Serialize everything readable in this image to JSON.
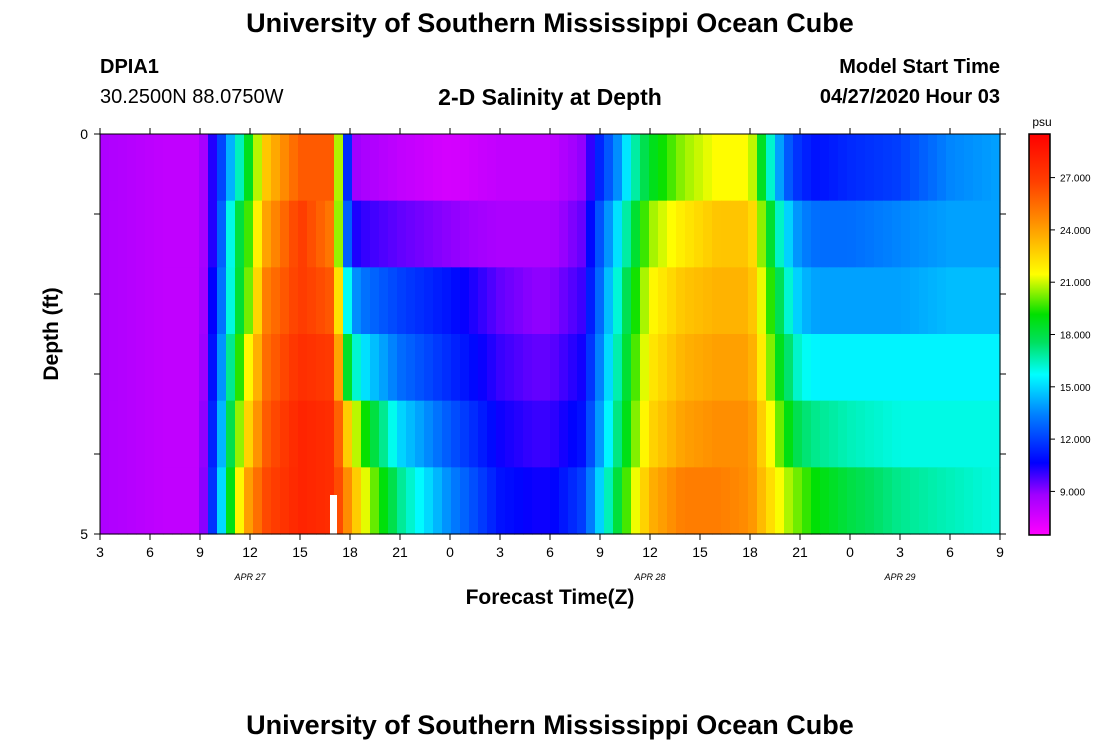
{
  "header": {
    "main_title": "University of Southern Mississippi Ocean Cube",
    "station_id": "DPIA1",
    "station_coords": "30.2500N 88.0750W",
    "plot_title": "2-D Salinity at Depth",
    "model_label": "Model Start Time",
    "model_time": "04/27/2020 Hour 03"
  },
  "footer": {
    "repeat_title": "University of Southern Mississippi Ocean Cube"
  },
  "chart_data": {
    "type": "heatmap",
    "title": "2-D Salinity at Depth",
    "xlabel": "Forecast Time(Z)",
    "ylabel": "Depth (ft)",
    "x_tick_labels": [
      "3",
      "6",
      "9",
      "12",
      "15",
      "18",
      "21",
      "0",
      "3",
      "6",
      "9",
      "12",
      "15",
      "18",
      "21",
      "0",
      "3",
      "6",
      "9"
    ],
    "date_labels": [
      {
        "label": "APR 27",
        "tick_index": 3
      },
      {
        "label": "APR 28",
        "tick_index": 11
      },
      {
        "label": "APR 29",
        "tick_index": 16
      }
    ],
    "y_tick_labels": [
      "0",
      "5"
    ],
    "ylim": [
      0,
      5
    ],
    "colorbar": {
      "unit": "psu",
      "ticks": [
        "9.000",
        "12.000",
        "15.000",
        "18.000",
        "21.000",
        "24.000",
        "27.000"
      ],
      "range": [
        6.5,
        29.5
      ]
    },
    "key_times": [
      3,
      7,
      9,
      10,
      11,
      12,
      13,
      15,
      17,
      18,
      19,
      21,
      24,
      27,
      29,
      30,
      32,
      33,
      34,
      35,
      36,
      38,
      40,
      42,
      44,
      45,
      46,
      48,
      51,
      54,
      57
    ],
    "rows": [
      {
        "depth": 0,
        "values": [
          8.5,
          8.0,
          8.0,
          11.0,
          15.0,
          19.0,
          23.0,
          26.0,
          26.0,
          9.0,
          8.5,
          8.0,
          7.5,
          8.0,
          8.0,
          8.0,
          9.0,
          11.5,
          13.5,
          16.5,
          18.5,
          20.5,
          21.5,
          21.5,
          13.0,
          11.5,
          11.0,
          11.5,
          12.0,
          13.5,
          14.0
        ]
      },
      {
        "depth": 1,
        "values": [
          8.5,
          8.0,
          8.0,
          11.0,
          17.0,
          20.0,
          24.0,
          27.0,
          25.0,
          10.5,
          10.0,
          9.5,
          9.0,
          8.5,
          8.5,
          8.5,
          9.5,
          12.5,
          15.0,
          18.0,
          20.5,
          22.0,
          23.0,
          23.0,
          15.5,
          13.5,
          13.0,
          13.0,
          13.5,
          14.0,
          14.0
        ]
      },
      {
        "depth": 2,
        "values": [
          8.5,
          8.0,
          8.0,
          11.5,
          17.0,
          20.5,
          25.0,
          27.0,
          26.0,
          14.0,
          13.0,
          12.0,
          11.0,
          9.5,
          9.0,
          9.0,
          10.0,
          13.0,
          16.0,
          19.0,
          21.5,
          23.0,
          23.5,
          23.5,
          17.0,
          14.5,
          14.0,
          14.0,
          14.0,
          14.5,
          14.5
        ]
      },
      {
        "depth": 3,
        "values": [
          8.5,
          8.0,
          8.0,
          12.0,
          18.0,
          22.0,
          25.5,
          27.5,
          27.0,
          17.0,
          15.0,
          13.0,
          11.5,
          10.0,
          9.5,
          9.5,
          10.5,
          13.5,
          16.5,
          19.5,
          22.0,
          23.5,
          24.0,
          24.0,
          18.0,
          16.0,
          15.5,
          15.5,
          15.5,
          15.5,
          15.5
        ]
      },
      {
        "depth": 4,
        "values": [
          8.5,
          8.0,
          8.0,
          12.5,
          19.0,
          23.0,
          26.0,
          28.0,
          27.5,
          22.0,
          19.0,
          15.0,
          12.5,
          10.5,
          10.0,
          10.0,
          11.0,
          14.0,
          17.0,
          20.0,
          22.5,
          24.0,
          24.5,
          24.5,
          19.5,
          17.5,
          17.0,
          16.5,
          16.0,
          16.0,
          16.0
        ]
      },
      {
        "depth": 5,
        "values": [
          8.5,
          8.0,
          8.0,
          13.0,
          20.0,
          24.5,
          26.5,
          28.0,
          27.5,
          24.0,
          21.0,
          17.0,
          13.5,
          11.0,
          10.5,
          10.5,
          12.0,
          15.0,
          18.0,
          21.0,
          23.5,
          25.0,
          25.0,
          24.5,
          21.0,
          20.0,
          19.0,
          18.0,
          17.0,
          16.5,
          16.0
        ]
      }
    ]
  }
}
